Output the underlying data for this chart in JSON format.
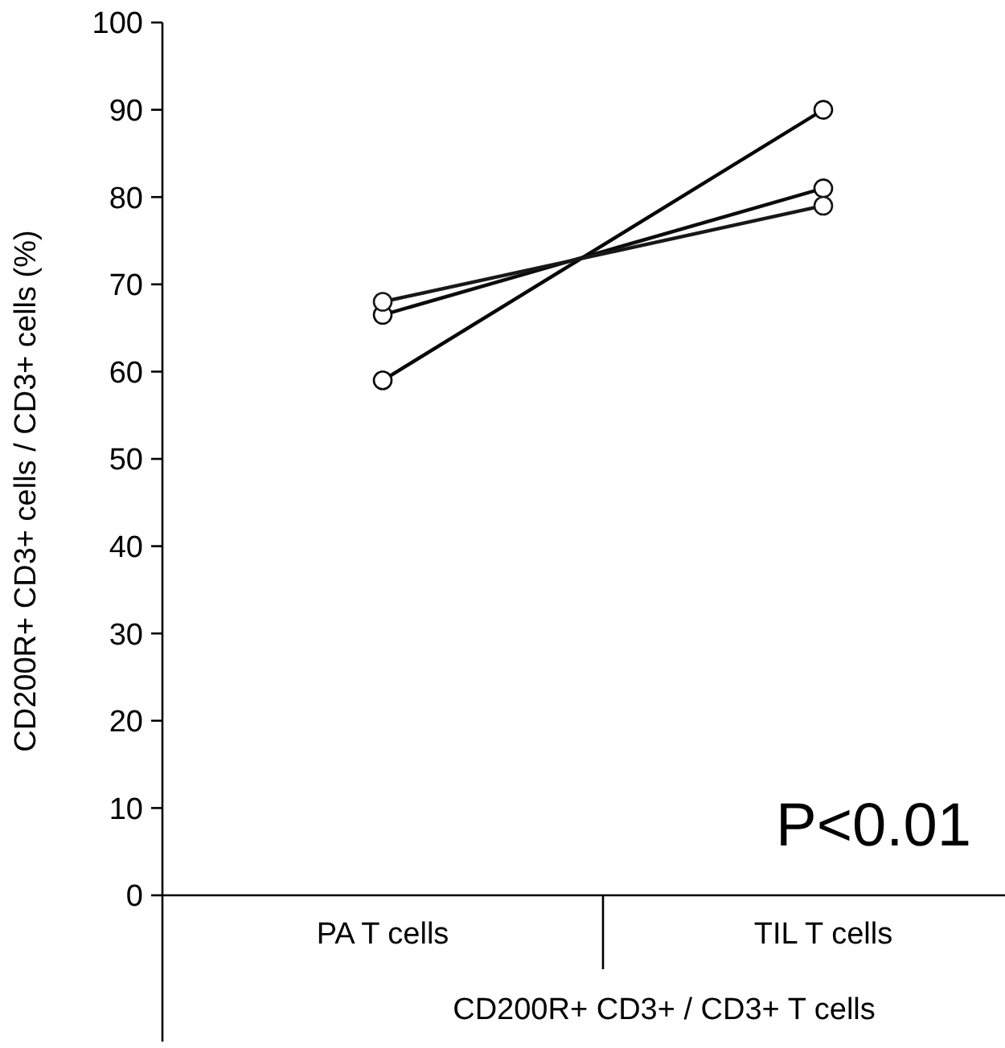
{
  "chart_data": {
    "type": "line",
    "categories": [
      "PA T cells",
      "TIL T cells"
    ],
    "xlabel": "CD200R+ CD3+ / CD3+ T cells",
    "ylabel": "CD200R+ CD3+ cells / CD3+ cells (%)",
    "ylim": [
      0,
      100
    ],
    "yticks": [
      0,
      10,
      20,
      30,
      40,
      50,
      60,
      70,
      80,
      90,
      100
    ],
    "marker": "circle",
    "grid": false,
    "annotations": [
      "P<0.01"
    ],
    "series": [
      {
        "color": "#060606",
        "values": [
          59,
          90
        ]
      },
      {
        "color": "#0c0c0c",
        "values": [
          66.5,
          81
        ]
      },
      {
        "color": "#181818",
        "values": [
          68,
          79
        ]
      }
    ]
  }
}
